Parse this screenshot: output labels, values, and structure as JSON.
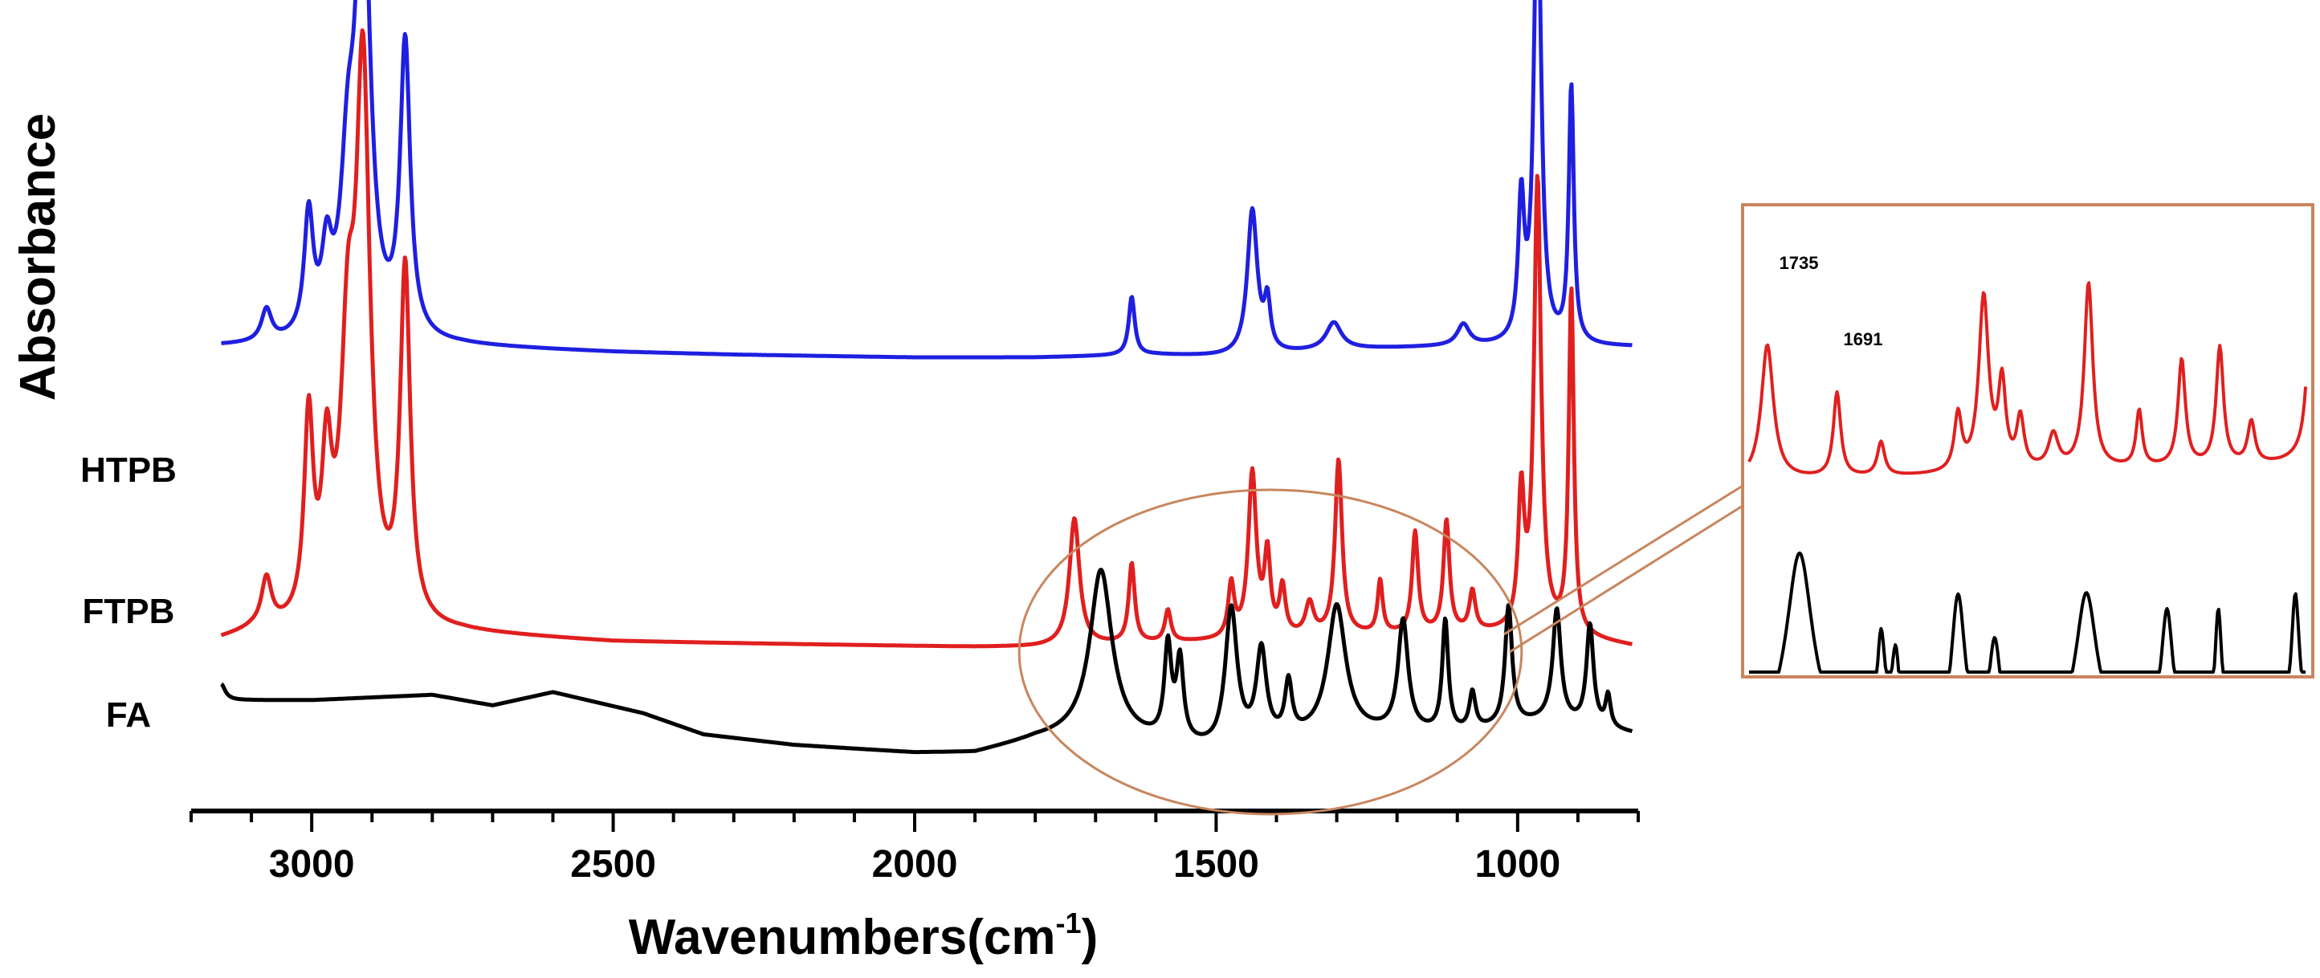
{
  "chart_data": {
    "type": "line",
    "title": "",
    "xlabel": "Wavenumbers(cm",
    "xlabel_superscript": "-1",
    "xlabel_close": ")",
    "ylabel": "Absorbance",
    "xlim": [
      3200,
      800
    ],
    "x_reversed": true,
    "x_ticks": [
      3000,
      2500,
      2000,
      1500,
      1000
    ],
    "x_tick_labels": [
      "3000",
      "2500",
      "2000",
      "1500",
      "1000"
    ],
    "y_ticks_shown": false,
    "grid": false,
    "legend": "series names labelled at left of each trace",
    "series": [
      {
        "name": "HTPB",
        "color": "#1f1fe0",
        "baseline": 0.62,
        "start_level": 0.66,
        "baseline_points": [
          [
            3200,
            0.66
          ],
          [
            3100,
            0.66
          ],
          [
            2750,
            0.66
          ],
          [
            2500,
            0.64
          ],
          [
            2300,
            0.63
          ],
          [
            2000,
            0.62
          ],
          [
            1800,
            0.62
          ],
          [
            1600,
            0.63
          ],
          [
            1450,
            0.62
          ],
          [
            1300,
            0.65
          ],
          [
            1100,
            0.66
          ],
          [
            950,
            0.66
          ],
          [
            800,
            0.66
          ]
        ],
        "peaks": [
          {
            "x": 3075,
            "h": 0.12,
            "w": 10
          },
          {
            "x": 3005,
            "h": 0.45,
            "w": 9
          },
          {
            "x": 2975,
            "h": 0.28,
            "w": 10
          },
          {
            "x": 2940,
            "h": 0.55,
            "w": 14
          },
          {
            "x": 2915,
            "h": 1.76,
            "w": 14
          },
          {
            "x": 2845,
            "h": 1.1,
            "w": 10
          },
          {
            "x": 1640,
            "h": 0.22,
            "w": 6
          },
          {
            "x": 1440,
            "h": 0.55,
            "w": 10
          },
          {
            "x": 1415,
            "h": 0.18,
            "w": 6
          },
          {
            "x": 1305,
            "h": 0.1,
            "w": 15
          },
          {
            "x": 1090,
            "h": 0.08,
            "w": 12
          },
          {
            "x": 994,
            "h": 0.52,
            "w": 6
          },
          {
            "x": 967,
            "h": 1.82,
            "w": 7
          },
          {
            "x": 911,
            "h": 0.97,
            "w": 5
          }
        ]
      },
      {
        "name": "FTPB",
        "color": "#e01f1f",
        "start_level": 0.0,
        "baseline_points": [
          [
            3200,
            0.0
          ],
          [
            3100,
            0.05
          ],
          [
            2750,
            0.05
          ],
          [
            2500,
            0.02
          ],
          [
            2200,
            0.01
          ],
          [
            1900,
            0.0
          ],
          [
            1800,
            0.0
          ],
          [
            1500,
            0.02
          ],
          [
            1300,
            0.04
          ],
          [
            1100,
            0.05
          ],
          [
            950,
            0.05
          ],
          [
            800,
            0.0
          ]
        ],
        "peaks": [
          {
            "x": 3075,
            "h": 0.18,
            "w": 10
          },
          {
            "x": 3005,
            "h": 0.75,
            "w": 9
          },
          {
            "x": 2975,
            "h": 0.55,
            "w": 10
          },
          {
            "x": 2940,
            "h": 0.9,
            "w": 14
          },
          {
            "x": 2915,
            "h": 2.01,
            "w": 14
          },
          {
            "x": 2845,
            "h": 1.32,
            "w": 10
          },
          {
            "x": 1735,
            "h": 0.48,
            "w": 10
          },
          {
            "x": 1640,
            "h": 0.3,
            "w": 6
          },
          {
            "x": 1580,
            "h": 0.12,
            "w": 6
          },
          {
            "x": 1475,
            "h": 0.2,
            "w": 6
          },
          {
            "x": 1440,
            "h": 0.62,
            "w": 8
          },
          {
            "x": 1415,
            "h": 0.3,
            "w": 6
          },
          {
            "x": 1390,
            "h": 0.18,
            "w": 6
          },
          {
            "x": 1345,
            "h": 0.12,
            "w": 8
          },
          {
            "x": 1297,
            "h": 0.66,
            "w": 7
          },
          {
            "x": 1228,
            "h": 0.2,
            "w": 5
          },
          {
            "x": 1170,
            "h": 0.38,
            "w": 6
          },
          {
            "x": 1118,
            "h": 0.42,
            "w": 6
          },
          {
            "x": 1075,
            "h": 0.15,
            "w": 6
          },
          {
            "x": 994,
            "h": 0.5,
            "w": 6
          },
          {
            "x": 967,
            "h": 1.7,
            "w": 7
          },
          {
            "x": 911,
            "h": 1.3,
            "w": 5
          }
        ]
      },
      {
        "name": "FA",
        "color": "#000000",
        "baseline_points": [
          [
            3200,
            -0.25
          ],
          [
            3150,
            -0.2
          ],
          [
            3000,
            -0.2
          ],
          [
            2800,
            -0.18
          ],
          [
            2700,
            -0.22
          ],
          [
            2600,
            -0.17
          ],
          [
            2450,
            -0.25
          ],
          [
            2350,
            -0.33
          ],
          [
            2200,
            -0.37
          ],
          [
            2000,
            -0.4
          ],
          [
            1900,
            -0.4
          ],
          [
            1800,
            -0.35
          ],
          [
            1700,
            -0.33
          ],
          [
            1500,
            -0.4
          ],
          [
            1300,
            -0.33
          ],
          [
            1100,
            -0.33
          ],
          [
            950,
            -0.28
          ],
          [
            800,
            -0.33
          ]
        ],
        "peaks": [
          {
            "x": 3150,
            "h": 0.06,
            "w": 8
          },
          {
            "x": 1691,
            "h": 0.62,
            "w": 22
          },
          {
            "x": 1580,
            "h": 0.35,
            "w": 7
          },
          {
            "x": 1560,
            "h": 0.3,
            "w": 7
          },
          {
            "x": 1475,
            "h": 0.52,
            "w": 12
          },
          {
            "x": 1425,
            "h": 0.34,
            "w": 10
          },
          {
            "x": 1380,
            "h": 0.2,
            "w": 7
          },
          {
            "x": 1300,
            "h": 0.48,
            "w": 18
          },
          {
            "x": 1190,
            "h": 0.42,
            "w": 10
          },
          {
            "x": 1120,
            "h": 0.42,
            "w": 6
          },
          {
            "x": 1075,
            "h": 0.14,
            "w": 6
          },
          {
            "x": 1015,
            "h": 0.45,
            "w": 7
          },
          {
            "x": 935,
            "h": 0.42,
            "w": 8
          },
          {
            "x": 880,
            "h": 0.38,
            "w": 7
          },
          {
            "x": 850,
            "h": 0.12,
            "w": 5
          }
        ]
      }
    ],
    "highlight_ellipse": {
      "x_range": [
        1800,
        1020
      ],
      "description": "zoom region"
    },
    "inset": {
      "x_range": [
        1760,
        1000
      ],
      "series_shown": [
        "FTPB",
        "FA"
      ],
      "annotations": [
        {
          "text": "1735",
          "series": "FTPB"
        },
        {
          "text": "1691",
          "series": "FA"
        }
      ]
    }
  }
}
